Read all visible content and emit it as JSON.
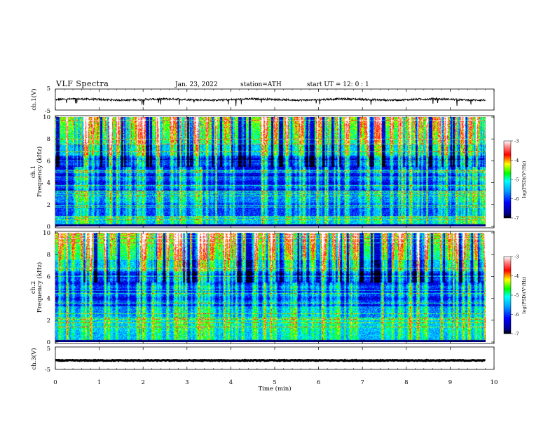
{
  "header": {
    "title": "VLF  Spectra",
    "date": "Jan. 23, 2022",
    "station": "station=ATH",
    "start": "start  UT  =    12: 0   : 1"
  },
  "chart_data": [
    {
      "type": "line",
      "ylabel": "ch.1(V)",
      "ylim": [
        -5,
        5
      ],
      "yticks": [
        "5",
        "-5"
      ],
      "xlim": [
        0,
        10
      ],
      "baseline": 0,
      "trace_color": "#000000"
    },
    {
      "type": "heatmap",
      "panel_label": "ch.1",
      "ylabel": "Frequency  (kHz)",
      "ylim": [
        0,
        10
      ],
      "yticks": [
        "0",
        "2",
        "4",
        "6",
        "8",
        "10"
      ],
      "xlim": [
        0,
        9.8
      ],
      "colorbar": {
        "label": "log(PSD)(V²/Hz)",
        "range": [
          -7,
          -3
        ],
        "ticks": [
          "-3",
          "-4",
          "-5",
          "-6",
          "-7"
        ]
      }
    },
    {
      "type": "heatmap",
      "panel_label": "ch.2",
      "ylabel": "Frequency  (kHz)",
      "ylim": [
        0,
        10
      ],
      "yticks": [
        "0",
        "2",
        "4",
        "6",
        "8",
        "10"
      ],
      "xlim": [
        0,
        9.8
      ],
      "colorbar": {
        "label": "log(PSD)(V²/Hz)",
        "range": [
          -7,
          -3
        ],
        "ticks": [
          "-3",
          "-4",
          "-5",
          "-6",
          "-7"
        ]
      }
    },
    {
      "type": "line",
      "ylabel": "ch.3(V)",
      "ylim": [
        -5,
        5
      ],
      "yticks": [
        "5",
        "-5"
      ],
      "xlim": [
        0,
        10
      ],
      "baseline": -1,
      "trace_color": "#000000"
    }
  ],
  "xaxis": {
    "label": "Time  (min)",
    "ticks": [
      "0",
      "1",
      "2",
      "3",
      "4",
      "5",
      "6",
      "7",
      "8",
      "9",
      "10"
    ],
    "range": [
      0,
      10
    ]
  }
}
